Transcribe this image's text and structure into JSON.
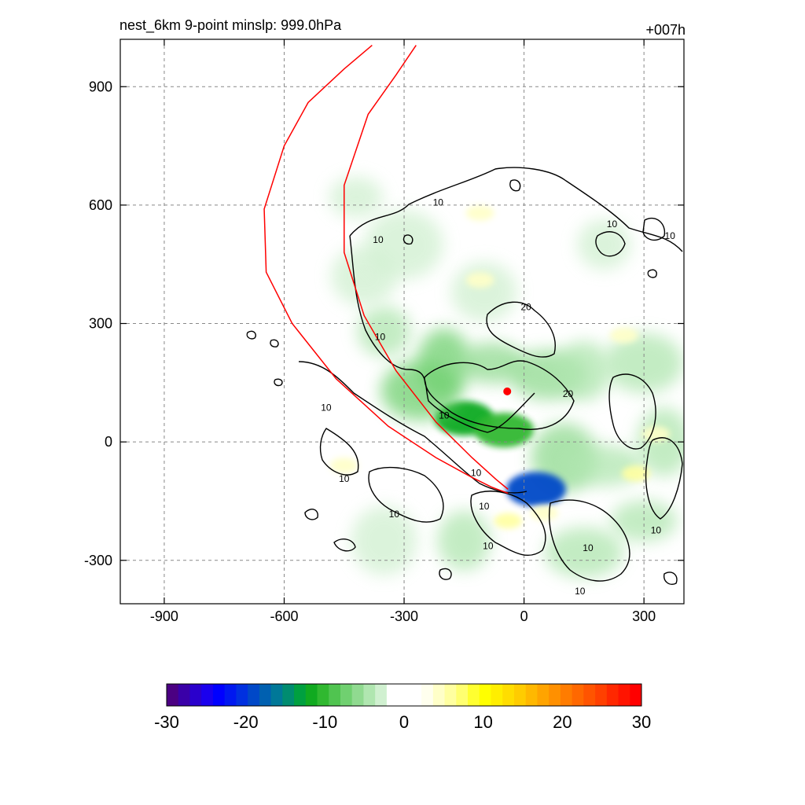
{
  "chart_data": {
    "type": "heatmap",
    "title_left": "nest_6km  9-point minslp: 999.0hPa",
    "title_right": "+007h",
    "xlabel": "",
    "ylabel": "",
    "xlim": [
      -1010,
      400
    ],
    "ylim": [
      -410,
      1020
    ],
    "x_ticks": [
      -900,
      -600,
      -300,
      0,
      300
    ],
    "y_ticks": [
      -300,
      0,
      300,
      600,
      900
    ],
    "x_tick_labels": [
      "-900",
      "-600",
      "-300",
      "0",
      "300"
    ],
    "y_tick_labels": [
      "-300",
      "0",
      "300",
      "600",
      "900"
    ],
    "grid": true,
    "contour_line_color": "#000000",
    "contour_labels": [
      {
        "text": "10",
        "x": -215,
        "y": 605
      },
      {
        "text": "10",
        "x": -365,
        "y": 510
      },
      {
        "text": "10",
        "x": 220,
        "y": 550
      },
      {
        "text": "10",
        "x": 365,
        "y": 520
      },
      {
        "text": "20",
        "x": 5,
        "y": 340
      },
      {
        "text": "10",
        "x": -360,
        "y": 265
      },
      {
        "text": "20",
        "x": 110,
        "y": 120
      },
      {
        "text": "10",
        "x": -495,
        "y": 85
      },
      {
        "text": "10",
        "x": -200,
        "y": 65
      },
      {
        "text": "10",
        "x": -120,
        "y": -80
      },
      {
        "text": "10",
        "x": -450,
        "y": -95
      },
      {
        "text": "10",
        "x": -100,
        "y": -165
      },
      {
        "text": "10",
        "x": -325,
        "y": -185
      },
      {
        "text": "10",
        "x": -90,
        "y": -265
      },
      {
        "text": "10",
        "x": 160,
        "y": -270
      },
      {
        "text": "10",
        "x": 330,
        "y": -225
      },
      {
        "text": "10",
        "x": 140,
        "y": -380
      }
    ],
    "track_lines": [
      {
        "name": "",
        "color": "#ff0000",
        "x": [
          -380,
          -450,
          -540,
          -600,
          -650,
          -645,
          -580,
          -470,
          -340,
          -220,
          -130,
          -80,
          -40
        ],
        "y": [
          1005,
          945,
          860,
          750,
          590,
          430,
          300,
          160,
          40,
          -40,
          -90,
          -115,
          -130
        ]
      },
      {
        "name": "",
        "color": "#ff0000",
        "x": [
          -270,
          -320,
          -390,
          -450,
          -450,
          -400,
          -320,
          -220,
          -130,
          -70,
          -40
        ],
        "y": [
          1005,
          930,
          830,
          650,
          480,
          320,
          180,
          50,
          -40,
          -95,
          -120
        ]
      }
    ],
    "center_marker": {
      "x": -42,
      "y": 128,
      "color": "#ff0000"
    },
    "shading_blobs_green": [
      {
        "x": -150,
        "y": 60,
        "v": -12
      },
      {
        "x": -50,
        "y": 30,
        "v": -10
      },
      {
        "x": -260,
        "y": 130,
        "v": -8
      },
      {
        "x": -200,
        "y": 200,
        "v": -7
      },
      {
        "x": -80,
        "y": 200,
        "v": -6
      },
      {
        "x": 60,
        "y": 170,
        "v": -6
      },
      {
        "x": 150,
        "y": 180,
        "v": -5
      },
      {
        "x": 100,
        "y": -40,
        "v": -6
      },
      {
        "x": 200,
        "y": -60,
        "v": -5
      },
      {
        "x": -350,
        "y": 280,
        "v": -4
      },
      {
        "x": -400,
        "y": 420,
        "v": -3
      },
      {
        "x": -300,
        "y": 500,
        "v": -3
      },
      {
        "x": -420,
        "y": 620,
        "v": -3
      },
      {
        "x": -450,
        "y": 800,
        "v": -2
      },
      {
        "x": 300,
        "y": 200,
        "v": -4
      },
      {
        "x": 350,
        "y": 0,
        "v": -4
      },
      {
        "x": 300,
        "y": -200,
        "v": -5
      },
      {
        "x": 150,
        "y": -280,
        "v": -4
      },
      {
        "x": -150,
        "y": -250,
        "v": -4
      },
      {
        "x": -350,
        "y": -250,
        "v": -3
      },
      {
        "x": -500,
        "y": -100,
        "v": -2
      },
      {
        "x": 200,
        "y": 500,
        "v": -3
      },
      {
        "x": -100,
        "y": 380,
        "v": -3
      },
      {
        "x": 30,
        "y": -120,
        "v": -20
      }
    ],
    "shading_blobs_yellow": [
      {
        "x": -110,
        "y": 410,
        "v": 4
      },
      {
        "x": -40,
        "y": -200,
        "v": 6
      },
      {
        "x": 50,
        "y": -180,
        "v": 5
      },
      {
        "x": 280,
        "y": -80,
        "v": 6
      },
      {
        "x": 330,
        "y": 20,
        "v": 5
      },
      {
        "x": 250,
        "y": 270,
        "v": 4
      },
      {
        "x": -450,
        "y": -60,
        "v": 4
      },
      {
        "x": -110,
        "y": 580,
        "v": 5
      }
    ],
    "colorbar": {
      "min": -30,
      "max": 30,
      "ticks": [
        "-30",
        "-20",
        "-10",
        "0",
        "10",
        "20",
        "30"
      ],
      "colors": [
        "#4b0082",
        "#3a00a8",
        "#2a00cc",
        "#1a00ee",
        "#0000ff",
        "#0018f0",
        "#0030e0",
        "#0048c8",
        "#0060b0",
        "#007898",
        "#008c70",
        "#00a040",
        "#10aa20",
        "#30b830",
        "#50c450",
        "#70d070",
        "#90da90",
        "#b0e6b0",
        "#d0f0d0",
        "#ffffff",
        "#ffffff",
        "#ffffff",
        "#ffffee",
        "#ffffc8",
        "#ffffa0",
        "#ffff70",
        "#ffff30",
        "#ffff00",
        "#ffee00",
        "#ffdd00",
        "#ffcc00",
        "#ffb800",
        "#ffa400",
        "#ff9000",
        "#ff7c00",
        "#ff6800",
        "#ff5400",
        "#ff4000",
        "#ff2800",
        "#ff1400",
        "#ff0000"
      ]
    }
  }
}
